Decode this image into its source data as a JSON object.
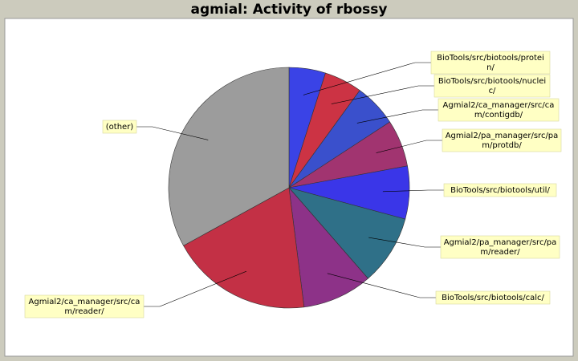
{
  "title": "agmial: Activity of rbossy",
  "chart_data": {
    "type": "pie",
    "title": "agmial: Activity of rbossy",
    "start_angle": "top, clockwise",
    "slices": [
      {
        "label": [
          "BioTools/src/biotools/protei",
          "n/"
        ],
        "value": 4.9,
        "color": "#3a43e6"
      },
      {
        "label": [
          "BioTools/src/biotools/nuclei",
          "c/"
        ],
        "value": 5.1,
        "color": "#cc3344"
      },
      {
        "label": [
          "Agmial2/ca_manager/src/ca",
          "m/contigdb/"
        ],
        "value": 5.8,
        "color": "#3a50cc"
      },
      {
        "label": [
          "Agmial2/pa_manager/src/pa",
          "m/protdb/"
        ],
        "value": 6.3,
        "color": "#a13470"
      },
      {
        "label": [
          "BioTools/src/biotools/util/"
        ],
        "value": 7.1,
        "color": "#3a36e8"
      },
      {
        "label": [
          "Agmial2/pa_manager/src/pa",
          "m/reader/"
        ],
        "value": 9.4,
        "color": "#2f7088"
      },
      {
        "label": [
          "BioTools/src/biotools/calc/"
        ],
        "value": 9.4,
        "color": "#8d3288"
      },
      {
        "label": [
          "Agmial2/ca_manager/src/ca",
          "m/reader/"
        ],
        "value": 19.0,
        "color": "#c33045"
      },
      {
        "label": [
          "(other)"
        ],
        "value": 33.0,
        "color": "#9c9c9c"
      }
    ]
  }
}
